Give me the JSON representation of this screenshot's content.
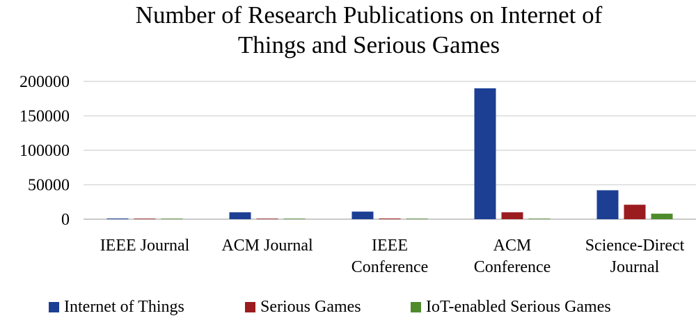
{
  "chart_data": {
    "type": "bar",
    "title_lines": [
      "Number of Research Publications on Internet of",
      "Things and Serious Games"
    ],
    "categories": [
      [
        "IEEE Journal"
      ],
      [
        "ACM Journal"
      ],
      [
        "IEEE",
        "Conference"
      ],
      [
        "ACM",
        "Conference"
      ],
      [
        "Science-Direct",
        "Journal"
      ]
    ],
    "series": [
      {
        "name": "Internet of Things",
        "color": "#1c3f94",
        "values": [
          1000,
          10000,
          11000,
          190000,
          42000
        ]
      },
      {
        "name": "Serious Games",
        "color": "#9b1c1f",
        "values": [
          300,
          300,
          1000,
          10000,
          21000
        ]
      },
      {
        "name": "IoT-enabled Serious Games",
        "color": "#4f8b2c",
        "values": [
          50,
          50,
          100,
          200,
          8000
        ]
      }
    ],
    "ylim": [
      0,
      200000
    ],
    "yticks": [
      "0",
      "50000",
      "100000",
      "150000",
      "200000"
    ],
    "grid": true,
    "legend_position": "bottom"
  }
}
